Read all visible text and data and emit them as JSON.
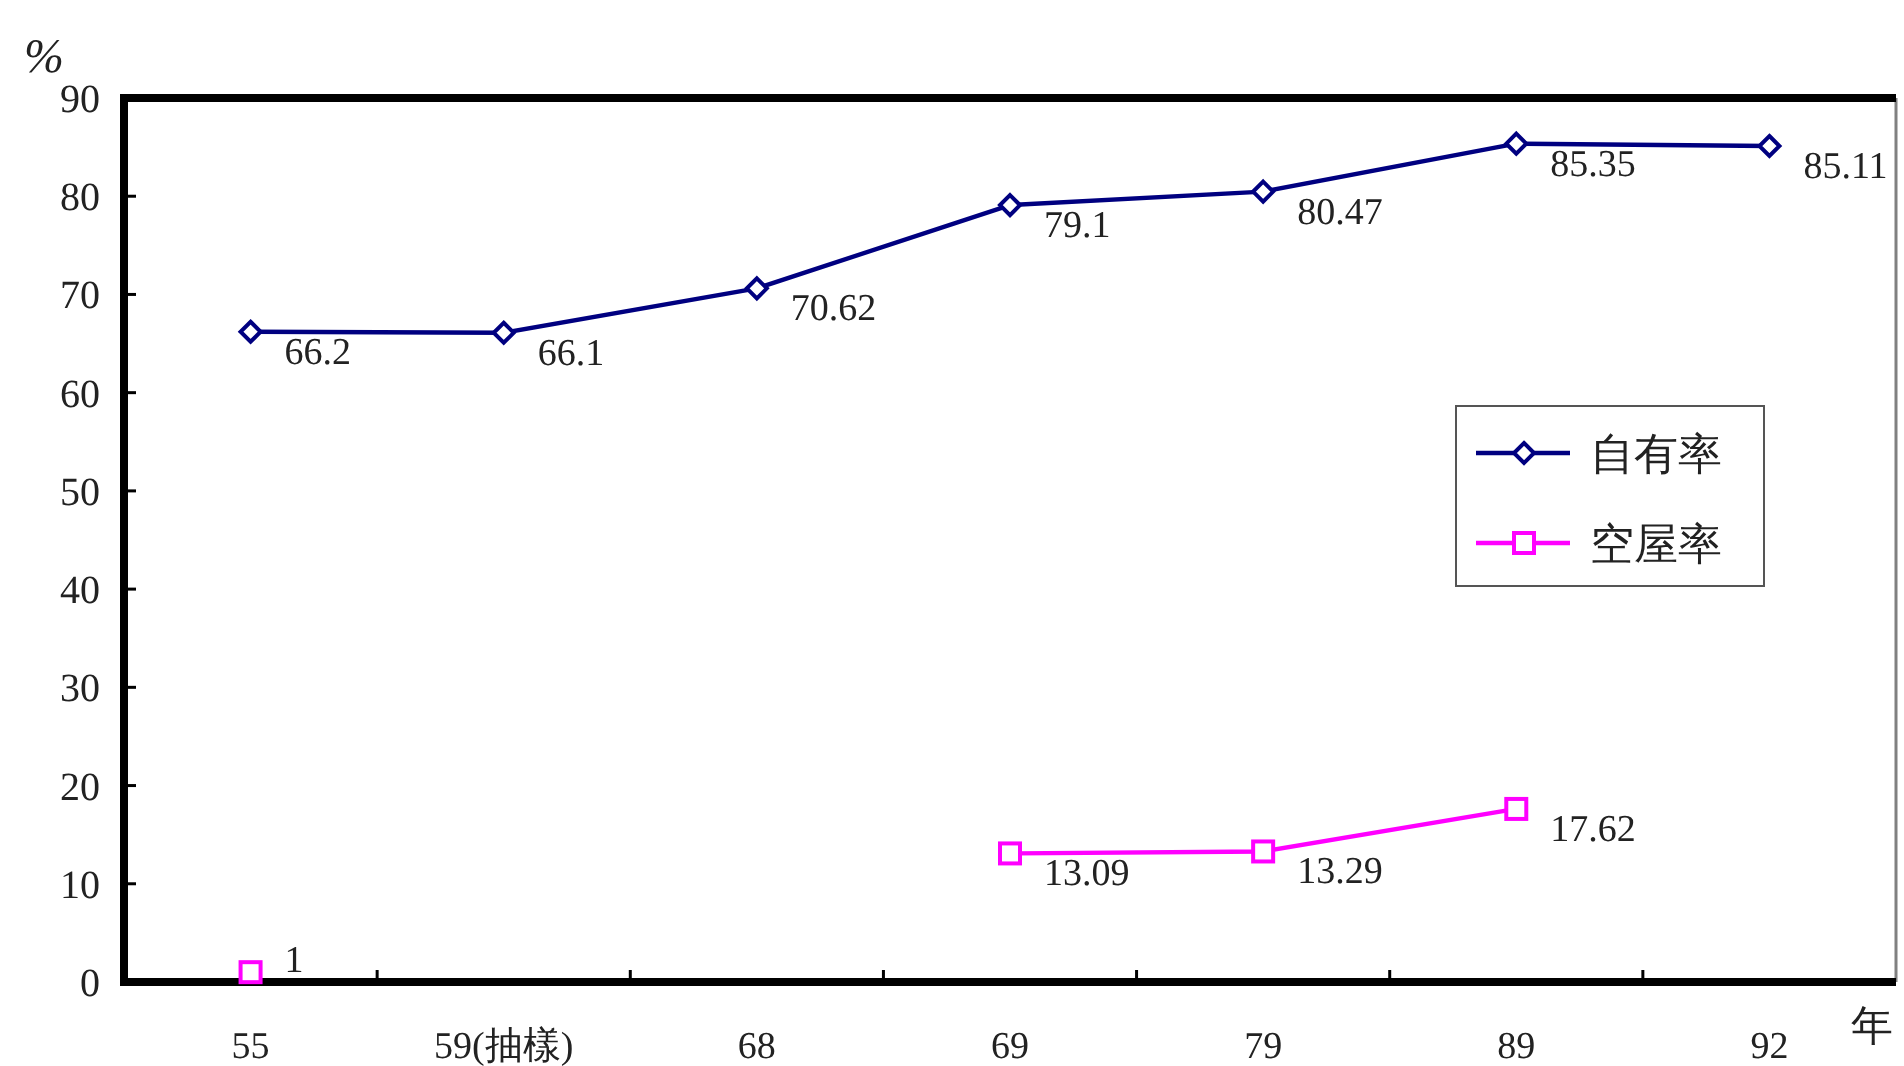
{
  "chart_data": {
    "type": "line",
    "categories": [
      "55",
      "59(抽樣)",
      "68",
      "69",
      "79",
      "89",
      "92"
    ],
    "xlabel": "年",
    "ylabel": "%",
    "ylim": [
      0,
      90
    ],
    "yticks": [
      0,
      10,
      20,
      30,
      40,
      50,
      60,
      70,
      80,
      90
    ],
    "series": [
      {
        "name": "自有率",
        "color": "#000080",
        "marker": "diamond",
        "values": [
          66.2,
          66.1,
          70.62,
          79.1,
          80.47,
          85.35,
          85.11
        ]
      },
      {
        "name": "空屋率",
        "color": "#ff00ff",
        "marker": "square",
        "values": [
          1,
          null,
          null,
          13.09,
          13.29,
          17.62,
          null
        ]
      }
    ],
    "data_labels": true,
    "legend": "right",
    "line_style": "solid"
  }
}
